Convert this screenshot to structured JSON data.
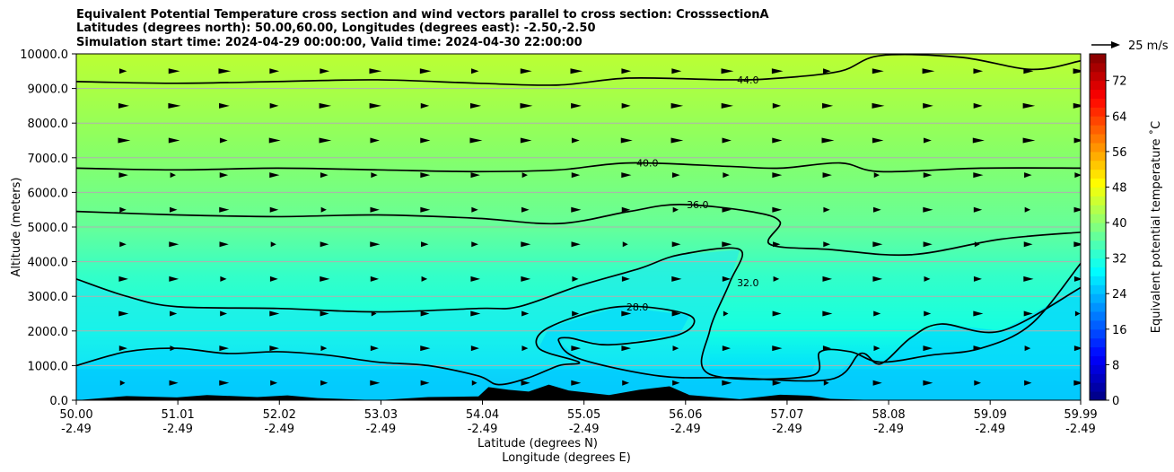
{
  "chart_data": {
    "type": "heatmap",
    "title_lines": [
      "Equivalent Potential Temperature cross section and wind vectors parallel to cross section: CrosssectionA",
      "Latitudes (degrees north): 50.00,60.00, Longitudes (degrees east): -2.50,-2.50",
      "Simulation start time: 2024-04-29 00:00:00, Valid time: 2024-04-30 22:00:00"
    ],
    "ylabel": "Altitude (meters)",
    "xlabel_lat": "Latitude (degrees N)",
    "xlabel_lon": "Longitude (degrees E)",
    "x_range": [
      50.0,
      59.99
    ],
    "y_range": [
      0,
      10000
    ],
    "x_ticks": [
      {
        "lat": "50.00",
        "lon": "-2.49",
        "value": 50.0
      },
      {
        "lat": "51.01",
        "lon": "-2.49",
        "value": 51.01
      },
      {
        "lat": "52.02",
        "lon": "-2.49",
        "value": 52.02
      },
      {
        "lat": "53.03",
        "lon": "-2.49",
        "value": 53.03
      },
      {
        "lat": "54.04",
        "lon": "-2.49",
        "value": 54.04
      },
      {
        "lat": "55.05",
        "lon": "-2.49",
        "value": 55.05
      },
      {
        "lat": "56.06",
        "lon": "-2.49",
        "value": 56.06
      },
      {
        "lat": "57.07",
        "lon": "-2.49",
        "value": 57.07
      },
      {
        "lat": "58.08",
        "lon": "-2.49",
        "value": 58.08
      },
      {
        "lat": "59.09",
        "lon": "-2.49",
        "value": 59.09
      },
      {
        "lat": "59.99",
        "lon": "-2.49",
        "value": 59.99
      }
    ],
    "y_ticks": [
      {
        "label": "0.0",
        "value": 0
      },
      {
        "label": "1000.0",
        "value": 1000
      },
      {
        "label": "2000.0",
        "value": 2000
      },
      {
        "label": "3000.0",
        "value": 3000
      },
      {
        "label": "4000.0",
        "value": 4000
      },
      {
        "label": "5000.0",
        "value": 5000
      },
      {
        "label": "6000.0",
        "value": 6000
      },
      {
        "label": "7000.0",
        "value": 7000
      },
      {
        "label": "8000.0",
        "value": 8000
      },
      {
        "label": "9000.0",
        "value": 9000
      },
      {
        "label": "10000.0",
        "value": 10000
      }
    ],
    "grid": "horizontal",
    "contours": [
      {
        "level": 44,
        "label": "44.0",
        "points": [
          [
            50.0,
            9200
          ],
          [
            51.0,
            9150
          ],
          [
            52.0,
            9200
          ],
          [
            53.0,
            9250
          ],
          [
            54.0,
            9150
          ],
          [
            54.8,
            9100
          ],
          [
            55.5,
            9300
          ],
          [
            56.5,
            9250
          ],
          [
            57.0,
            9300
          ],
          [
            57.6,
            9500
          ],
          [
            58.0,
            9950
          ],
          [
            58.8,
            9900
          ],
          [
            59.5,
            9550
          ],
          [
            59.99,
            9800
          ]
        ]
      },
      {
        "level": 40,
        "label": "40.0",
        "points": [
          [
            50.0,
            6700
          ],
          [
            51.0,
            6650
          ],
          [
            52.0,
            6700
          ],
          [
            53.0,
            6650
          ],
          [
            54.0,
            6600
          ],
          [
            54.8,
            6650
          ],
          [
            55.5,
            6850
          ],
          [
            56.5,
            6750
          ],
          [
            57.0,
            6700
          ],
          [
            57.6,
            6850
          ],
          [
            58.0,
            6600
          ],
          [
            59.0,
            6700
          ],
          [
            59.99,
            6700
          ]
        ]
      },
      {
        "level": 36,
        "label": "36.0",
        "points": [
          [
            50.0,
            5450
          ],
          [
            51.0,
            5350
          ],
          [
            52.0,
            5300
          ],
          [
            53.0,
            5350
          ],
          [
            54.0,
            5250
          ],
          [
            54.8,
            5100
          ],
          [
            55.5,
            5450
          ],
          [
            56.0,
            5650
          ],
          [
            56.7,
            5450
          ],
          [
            57.0,
            5150
          ],
          [
            56.9,
            4500
          ],
          [
            57.5,
            4350
          ],
          [
            58.3,
            4200
          ],
          [
            59.2,
            4650
          ],
          [
            59.99,
            4850
          ]
        ]
      },
      {
        "level": 32,
        "label": "32.0",
        "points": [
          [
            50.0,
            3500
          ],
          [
            50.5,
            3000
          ],
          [
            51.0,
            2700
          ],
          [
            52.0,
            2650
          ],
          [
            53.0,
            2550
          ],
          [
            54.0,
            2650
          ],
          [
            54.4,
            2700
          ],
          [
            55.0,
            3300
          ],
          [
            55.6,
            3800
          ],
          [
            56.0,
            4200
          ],
          [
            56.6,
            4350
          ],
          [
            56.5,
            3400
          ],
          [
            56.3,
            2000
          ],
          [
            56.3,
            750
          ],
          [
            57.3,
            700
          ],
          [
            57.4,
            1400
          ],
          [
            57.7,
            1400
          ],
          [
            58.0,
            1100
          ],
          [
            58.5,
            1300
          ],
          [
            59.0,
            1500
          ],
          [
            59.5,
            2200
          ],
          [
            59.99,
            3950
          ]
        ]
      },
      {
        "level": 28,
        "label": "28.0",
        "points": [
          [
            50.0,
            1000
          ],
          [
            50.5,
            1400
          ],
          [
            51.0,
            1500
          ],
          [
            51.5,
            1350
          ],
          [
            52.0,
            1400
          ],
          [
            52.5,
            1300
          ],
          [
            53.0,
            1100
          ],
          [
            53.5,
            1000
          ],
          [
            54.0,
            700
          ],
          [
            54.2,
            450
          ],
          [
            54.5,
            650
          ],
          [
            54.8,
            1000
          ],
          [
            55.0,
            1100
          ],
          [
            54.6,
            1500
          ],
          [
            54.7,
            2100
          ],
          [
            55.4,
            2700
          ],
          [
            56.1,
            2450
          ],
          [
            56.0,
            1900
          ],
          [
            55.3,
            1600
          ],
          [
            54.9,
            1800
          ],
          [
            54.8,
            1700
          ],
          [
            55.0,
            1200
          ],
          [
            55.8,
            700
          ],
          [
            56.5,
            650
          ],
          [
            57.5,
            600
          ],
          [
            57.8,
            1350
          ],
          [
            58.0,
            1050
          ],
          [
            58.3,
            1800
          ],
          [
            58.6,
            2200
          ],
          [
            59.2,
            2000
          ],
          [
            59.99,
            3250
          ]
        ]
      }
    ],
    "terrain": [
      [
        50.0,
        0
      ],
      [
        50.5,
        120
      ],
      [
        51.0,
        80
      ],
      [
        51.3,
        150
      ],
      [
        51.8,
        90
      ],
      [
        52.1,
        140
      ],
      [
        52.4,
        60
      ],
      [
        53.0,
        0
      ],
      [
        53.5,
        90
      ],
      [
        54.0,
        110
      ],
      [
        54.1,
        380
      ],
      [
        54.3,
        300
      ],
      [
        54.5,
        250
      ],
      [
        54.7,
        450
      ],
      [
        54.9,
        280
      ],
      [
        55.3,
        150
      ],
      [
        55.6,
        300
      ],
      [
        55.9,
        400
      ],
      [
        56.1,
        150
      ],
      [
        56.6,
        30
      ],
      [
        57.0,
        160
      ],
      [
        57.3,
        130
      ],
      [
        57.5,
        40
      ],
      [
        58.0,
        0
      ],
      [
        59.99,
        0
      ]
    ],
    "colorbar": {
      "label": "Equivalent potential temperature ˚C",
      "ticks": [
        "0",
        "8",
        "16",
        "24",
        "32",
        "40",
        "48",
        "56",
        "64",
        "72"
      ],
      "min": 0,
      "max": 78
    },
    "wind_legend": "25 m/s"
  }
}
